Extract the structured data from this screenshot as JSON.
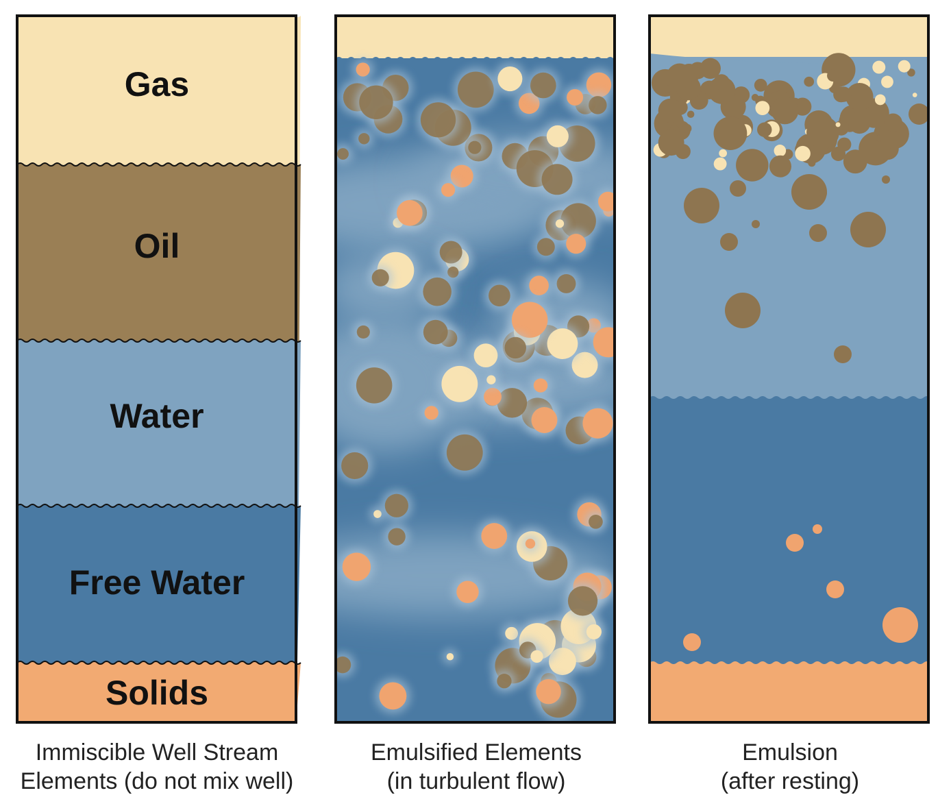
{
  "panels": [
    {
      "layers": [
        "Gas",
        "Oil",
        "Water",
        "Free Water",
        "Solids"
      ],
      "caption": [
        "Immiscible Well Stream",
        "Elements (do not mix well)"
      ]
    },
    {
      "caption": [
        "Emulsified Elements",
        "(in turbulent flow)"
      ]
    },
    {
      "caption": [
        "Emulsion",
        "(after resting)"
      ]
    }
  ]
}
